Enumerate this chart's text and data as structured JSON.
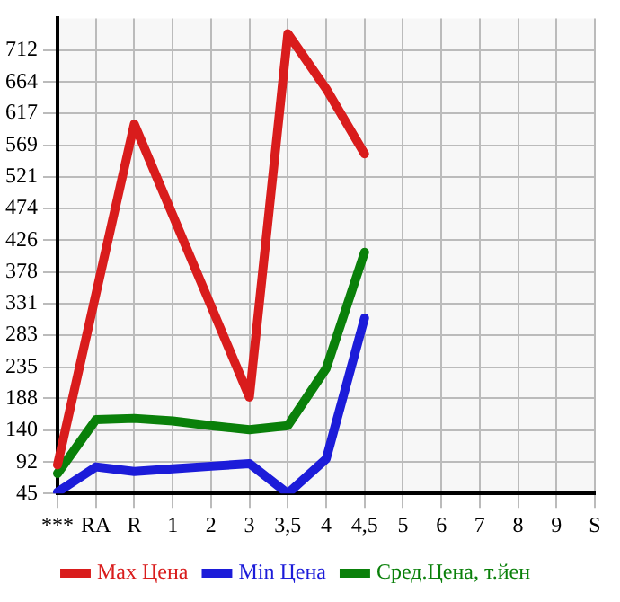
{
  "chart_data": {
    "type": "line",
    "categories": [
      "***",
      "RA",
      "R",
      "1",
      "2",
      "3",
      "3,5",
      "4",
      "4,5",
      "5",
      "6",
      "7",
      "8",
      "9",
      "S"
    ],
    "series": [
      {
        "name": "Max Цена",
        "color": "#d91c1c",
        "values": [
          88,
          345,
          601,
          464,
          327,
          190,
          737,
          654,
          556,
          null,
          null,
          null,
          null,
          null,
          null
        ]
      },
      {
        "name": "Min Цена",
        "color": "#1c1cd9",
        "values": [
          47,
          85,
          78,
          82,
          86,
          90,
          45,
          97,
          309,
          null,
          null,
          null,
          null,
          null,
          null
        ]
      },
      {
        "name": "Сред.Цена, т.йен",
        "color": "#0a800a",
        "values": [
          75,
          156,
          158,
          154,
          147,
          141,
          147,
          233,
          408,
          null,
          null,
          null,
          null,
          null,
          null
        ]
      }
    ],
    "ylim": [
      45,
      760
    ],
    "yticks": [
      45,
      92,
      140,
      188,
      235,
      283,
      331,
      378,
      426,
      474,
      521,
      569,
      617,
      664,
      712
    ],
    "grid": true,
    "legend": "bottom",
    "marker": "none",
    "line_style": "solid"
  }
}
